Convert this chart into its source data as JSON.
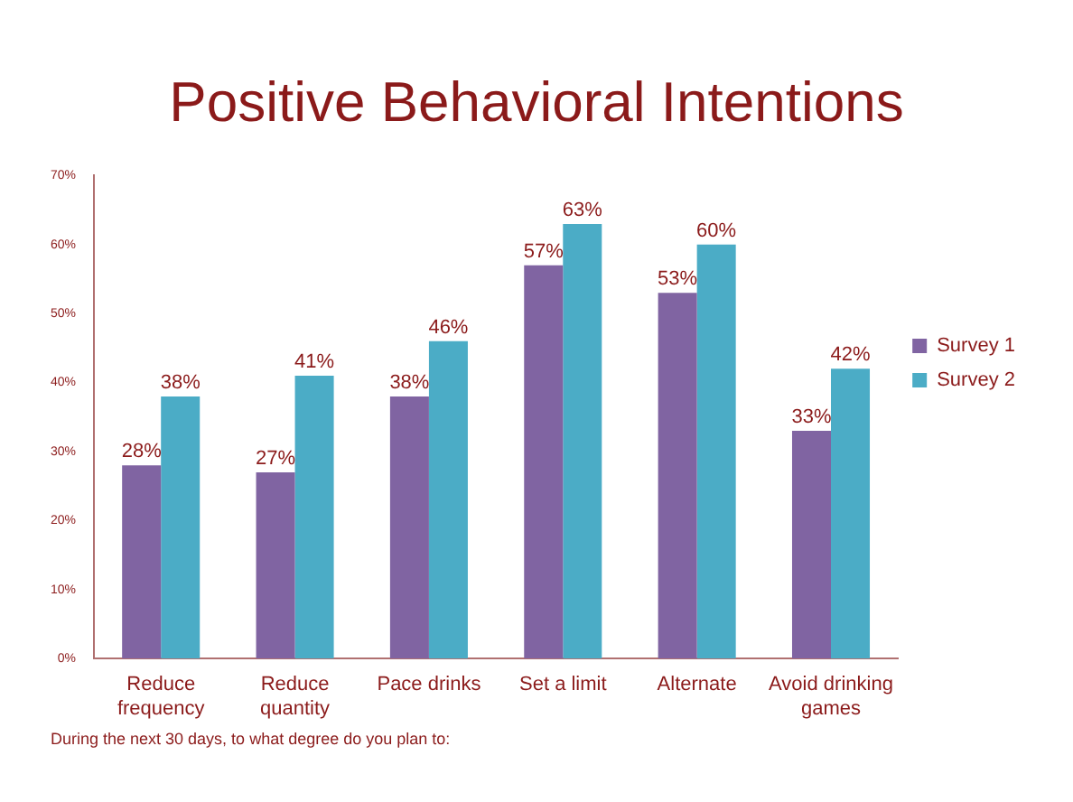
{
  "chart_data": {
    "type": "bar",
    "title": "Positive Behavioral Intentions",
    "categories": [
      "Reduce frequency",
      "Reduce quantity",
      "Pace drinks",
      "Set a limit",
      "Alternate",
      "Avoid drinking games"
    ],
    "series": [
      {
        "name": "Survey 1",
        "color": "#8064a2",
        "values": [
          28,
          27,
          38,
          57,
          53,
          33
        ],
        "value_labels": [
          "28%",
          "27%",
          "38%",
          "57%",
          "53%",
          "33%"
        ]
      },
      {
        "name": "Survey 2",
        "color": "#4bacc6",
        "values": [
          38,
          41,
          46,
          63,
          60,
          42
        ],
        "value_labels": [
          "38%",
          "41%",
          "46%",
          "63%",
          "60%",
          "42%"
        ]
      }
    ],
    "ylim": [
      0,
      70
    ],
    "yticks": [
      {
        "value": 0,
        "label": "0%"
      },
      {
        "value": 10,
        "label": "10%"
      },
      {
        "value": 20,
        "label": "20%"
      },
      {
        "value": 30,
        "label": "30%"
      },
      {
        "value": 40,
        "label": "40%"
      },
      {
        "value": 50,
        "label": "50%"
      },
      {
        "value": 60,
        "label": "60%"
      },
      {
        "value": 70,
        "label": "70%"
      }
    ],
    "grid": false,
    "legend": "right",
    "annotations": [
      "During the next 30 days, to what degree do you plan to:"
    ]
  }
}
